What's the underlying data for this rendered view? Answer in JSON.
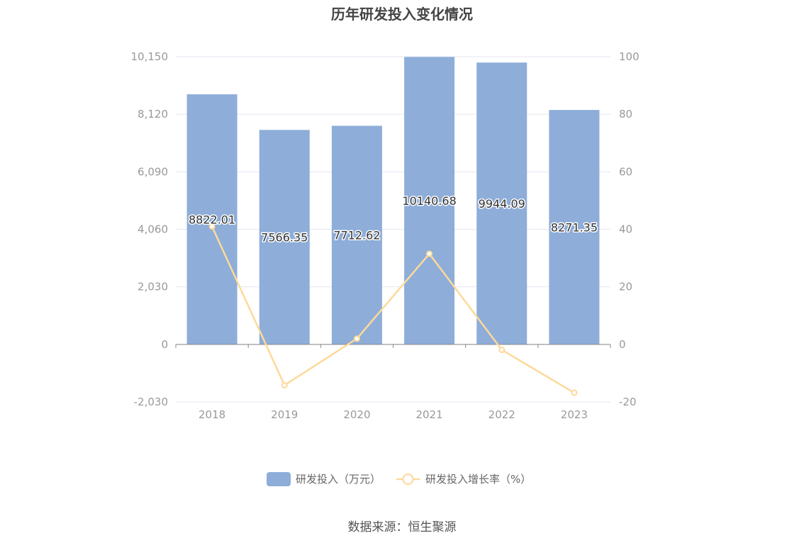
{
  "title": "历年研发投入变化情况",
  "source": "数据来源：恒生聚源",
  "colors": {
    "bar": "#8eadd9",
    "line": "#fdd99a",
    "grid": "#e4e6f2",
    "axis": "#888888"
  },
  "chart_data": {
    "type": "bar",
    "title": "历年研发投入变化情况",
    "categories": [
      "2018",
      "2019",
      "2020",
      "2021",
      "2022",
      "2023"
    ],
    "series": [
      {
        "name": "研发投入（万元）",
        "type": "bar",
        "axis": "left",
        "values": [
          8822.01,
          7566.35,
          7712.62,
          10140.68,
          9944.09,
          8271.35
        ],
        "labels": [
          "8822.01",
          "7566.35",
          "7712.62",
          "10140.68",
          "9944.09",
          "8271.35"
        ]
      },
      {
        "name": "研发投入增长率（%）",
        "type": "line",
        "axis": "right",
        "values": [
          41.0,
          -14.2,
          2.0,
          31.5,
          -1.9,
          -16.8
        ]
      }
    ],
    "y_left": {
      "ticks": [
        "-2,030",
        "0",
        "2,030",
        "4,060",
        "6,090",
        "8,120",
        "10,150"
      ],
      "ylim": [
        -2030,
        10150
      ]
    },
    "y_right": {
      "ticks": [
        "-20",
        "0",
        "20",
        "40",
        "60",
        "80",
        "100"
      ],
      "ylim": [
        -20,
        100
      ]
    },
    "grid": true,
    "legend": "bottom-center"
  }
}
